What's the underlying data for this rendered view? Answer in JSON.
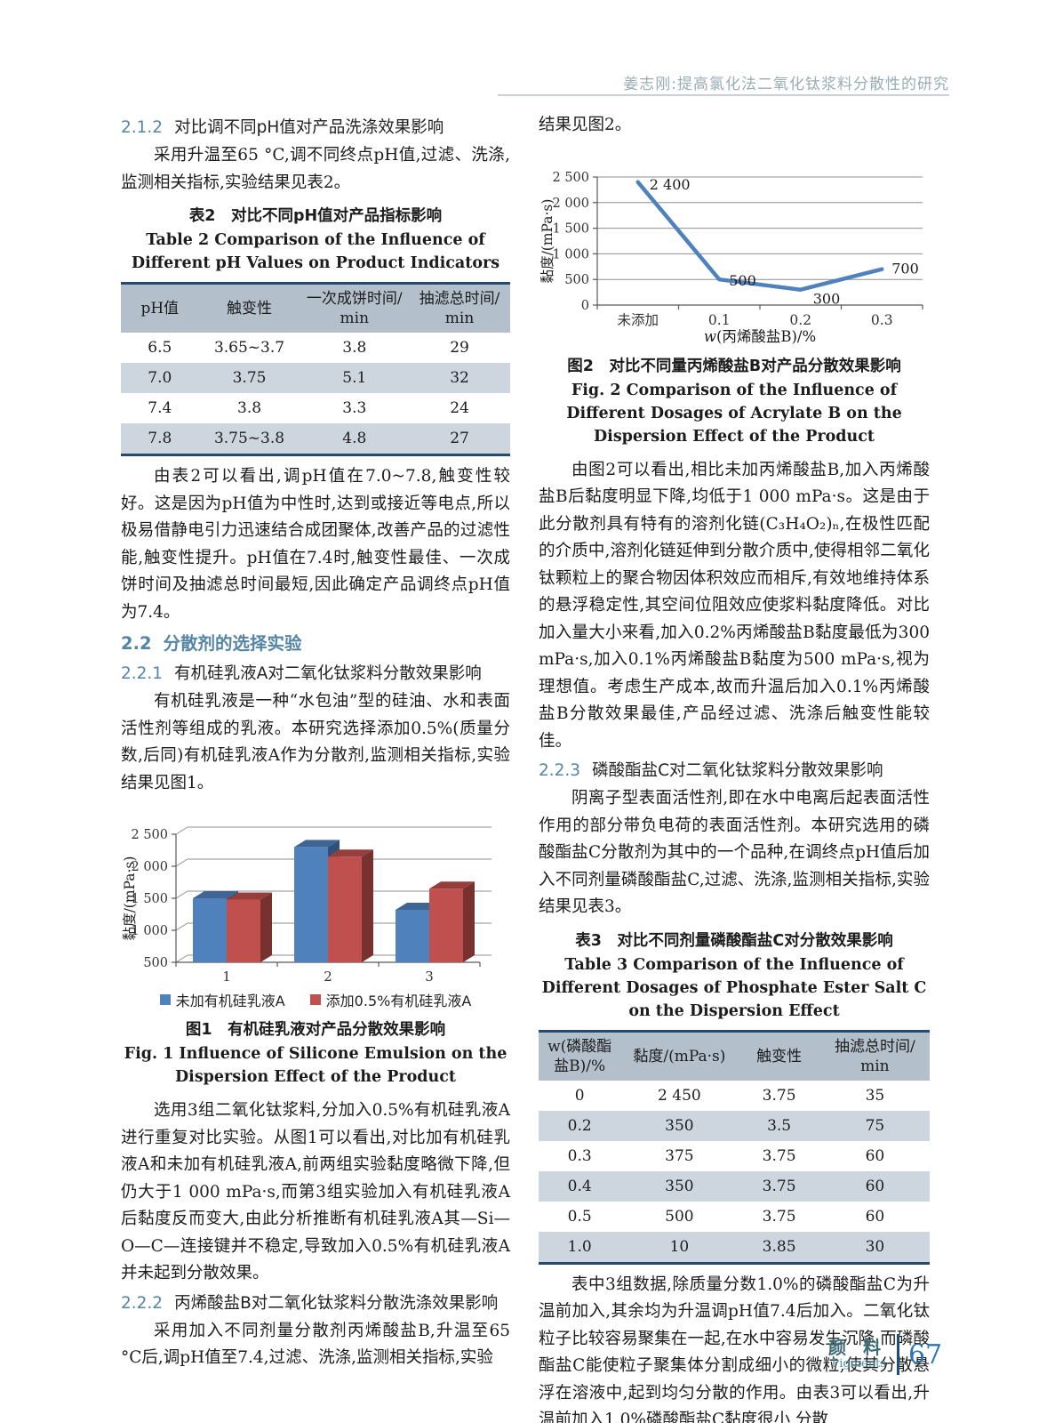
{
  "page": {
    "header_title": "姜志刚:提高氯化法二氧化钛浆料分散性的研究",
    "footer": {
      "journal_zh": "颜 料",
      "journal_en": "Pigments",
      "page_number": "67"
    }
  },
  "colors": {
    "heading_accent": "#5585a6",
    "header_title": "#9aacb4",
    "table_header_bg": "#b3bfcb",
    "table_stripe_bg": "#cdd6df",
    "table_rule": "#27496d",
    "series_blue": "#4f81bd",
    "series_red": "#c0504d",
    "footer_page_number_blue": "#2e75b6"
  },
  "left_column": {
    "sec_2_1_2": {
      "num": "2.1.2",
      "title": "对比调不同pH值对产品洗涤效果影响"
    },
    "para_1": "采用升温至65 °C,调不同终点pH值,过滤、洗涤,监测相关指标,实验结果见表2。",
    "table2": {
      "caption_zh": "表2　对比不同pH值对产品指标影响",
      "caption_en": "Table 2  Comparison of the Influence of Different pH Values on Product Indicators",
      "headers": [
        "pH值",
        "触变性",
        "一次成饼时间/\nmin",
        "抽滤总时间/\nmin"
      ],
      "rows": [
        [
          "6.5",
          "3.65~3.7",
          "3.8",
          "29"
        ],
        [
          "7.0",
          "3.75",
          "5.1",
          "32"
        ],
        [
          "7.4",
          "3.8",
          "3.3",
          "24"
        ],
        [
          "7.8",
          "3.75~3.8",
          "4.8",
          "27"
        ]
      ]
    },
    "para_2": "由表2可以看出,调pH值在7.0~7.8,触变性较好。这是因为pH值为中性时,达到或接近等电点,所以极易借静电引力迅速结合成团聚体,改善产品的过滤性能,触变性提升。pH值在7.4时,触变性最佳、一次成饼时间及抽滤总时间最短,因此确定产品调终点pH值为7.4。",
    "sec_2_2": {
      "num": "2.2",
      "title": "分散剂的选择实验"
    },
    "sec_2_2_1": {
      "num": "2.2.1",
      "title": "有机硅乳液A对二氧化钛浆料分散效果影响"
    },
    "para_3": "有机硅乳液是一种“水包油”型的硅油、水和表面活性剂等组成的乳液。本研究选择添加0.5%(质量分数,后同)有机硅乳液A作为分散剂,监测相关指标,实验结果见图1。",
    "fig1": {
      "caption_zh": "图1　有机硅乳液对产品分散效果影响",
      "caption_en": "Fig. 1  Influence of Silicone Emulsion on the Dispersion Effect of the Product"
    },
    "para_4": "选用3组二氧化钛浆料,分加入0.5%有机硅乳液A进行重复对比实验。从图1可以看出,对比加有机硅乳液A和未加有机硅乳液A,前两组实验黏度略微下降,但仍大于1 000 mPa·s,而第3组实验加入有机硅乳液A后黏度反而变大,由此分析推断有机硅乳液A其—Si—O—C—连接键并不稳定,导致加入0.5%有机硅乳液A并未起到分散效果。",
    "sec_2_2_2": {
      "num": "2.2.2",
      "title": "丙烯酸盐B对二氧化钛浆料分散洗涤效果影响"
    },
    "para_5": "采用加入不同剂量分散剂丙烯酸盐B,升温至65 °C后,调pH值至7.4,过滤、洗涤,监测相关指标,实验"
  },
  "right_column": {
    "para_6": "结果见图2。",
    "fig2": {
      "caption_zh": "图2　对比不同量丙烯酸盐B对产品分散效果影响",
      "caption_en": "Fig. 2  Comparison of the Influence of Different Dosages of Acrylate B on the Dispersion Effect of the Product"
    },
    "para_7": "由图2可以看出,相比未加丙烯酸盐B,加入丙烯酸盐B后黏度明显下降,均低于1 000 mPa·s。这是由于此分散剂具有特有的溶剂化链(C₃H₄O₂)ₙ,在极性匹配的介质中,溶剂化链延伸到分散介质中,使得相邻二氧化钛颗粒上的聚合物因体积效应而相斥,有效地维持体系的悬浮稳定性,其空间位阻效应使浆料黏度降低。对比加入量大小来看,加入0.2%丙烯酸盐B黏度最低为300 mPa·s,加入0.1%丙烯酸盐B黏度为500 mPa·s,视为理想值。考虑生产成本,故而升温后加入0.1%丙烯酸盐B分散效果最佳,产品经过滤、洗涤后触变性能较佳。",
    "sec_2_2_3": {
      "num": "2.2.3",
      "title": "磷酸酯盐C对二氧化钛浆料分散效果影响"
    },
    "para_8": "阴离子型表面活性剂,即在水中电离后起表面活性作用的部分带负电荷的表面活性剂。本研究选用的磷酸酯盐C分散剂为其中的一个品种,在调终点pH值后加入不同剂量磷酸酯盐C,过滤、洗涤,监测相关指标,实验结果见表3。",
    "table3": {
      "caption_zh": "表3　对比不同剂量磷酸酯盐C对分散效果影响",
      "caption_en": "Table 3  Comparison of the Influence of Different Dosages of Phosphate Ester Salt C on the Dispersion Effect",
      "headers": [
        "w(磷酸酯\n盐B)/%",
        "黏度/(mPa·s)",
        "触变性",
        "抽滤总时间/\nmin"
      ],
      "rows": [
        [
          "0",
          "2 450",
          "3.75",
          "35"
        ],
        [
          "0.2",
          "350",
          "3.5",
          "75"
        ],
        [
          "0.3",
          "375",
          "3.75",
          "60"
        ],
        [
          "0.4",
          "350",
          "3.75",
          "60"
        ],
        [
          "0.5",
          "500",
          "3.75",
          "60"
        ],
        [
          "1.0",
          "10",
          "3.85",
          "30"
        ]
      ]
    },
    "para_9": "表中3组数据,除质量分数1.0%的磷酸酯盐C为升温前加入,其余均为升温调pH值7.4后加入。二氧化钛粒子比较容易聚集在一起,在水中容易发生沉降,而磷酸酯盐C能使粒子聚集体分割成细小的微粒,使其分散悬浮在溶液中,起到均匀分散的作用。由表3可以看出,升温前加入1.0%磷酸酯盐C黏度很小,分散"
  },
  "chart_data": [
    {
      "id": "fig1",
      "type": "bar",
      "style": "3d",
      "categories": [
        "1",
        "2",
        "3"
      ],
      "series": [
        {
          "name": "未加有机硅乳液A",
          "color": "#4f81bd",
          "values": [
            1500,
            2300,
            1320
          ]
        },
        {
          "name": "添加0.5%有机硅乳液A",
          "color": "#c0504d",
          "values": [
            1480,
            2150,
            1650
          ]
        }
      ],
      "title": "",
      "xlabel": "",
      "ylabel": "黏度/(mPa·s)",
      "ylim": [
        500,
        2500
      ],
      "ytick_labels": [
        "500",
        "1 000",
        "1 500",
        "2 000",
        "2 500"
      ],
      "grid": true,
      "legend_position": "bottom"
    },
    {
      "id": "fig2",
      "type": "line",
      "x_categories": [
        "未添加",
        "0.1",
        "0.2",
        "0.3"
      ],
      "values": [
        2400,
        500,
        300,
        700
      ],
      "point_labels": [
        "2 400",
        "500",
        "300",
        "700"
      ],
      "title": "",
      "xlabel": "w(丙烯酸盐B)/%",
      "ylabel": "黏度/(mPa·s)",
      "ylim": [
        0,
        2500
      ],
      "ytick_labels": [
        "0",
        "500",
        "1 000",
        "1 500",
        "2 000",
        "2 500"
      ],
      "line_color": "#4f81bd",
      "grid": true,
      "legend_position": "none"
    }
  ]
}
